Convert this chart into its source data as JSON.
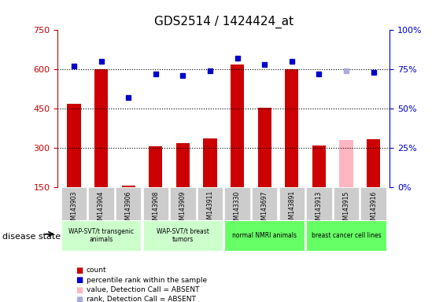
{
  "title": "GDS2514 / 1424424_at",
  "samples": [
    "GSM143903",
    "GSM143904",
    "GSM143906",
    "GSM143908",
    "GSM143909",
    "GSM143911",
    "GSM143330",
    "GSM143697",
    "GSM143891",
    "GSM143913",
    "GSM143915",
    "GSM143916"
  ],
  "bar_values": [
    470,
    600,
    155,
    305,
    318,
    338,
    618,
    453,
    600,
    310,
    330,
    335
  ],
  "bar_colors": [
    "#cc0000",
    "#cc0000",
    "#cc0000",
    "#cc0000",
    "#cc0000",
    "#cc0000",
    "#cc0000",
    "#cc0000",
    "#cc0000",
    "#cc0000",
    "#ffb6c1",
    "#cc0000"
  ],
  "rank_values": [
    77,
    80,
    57,
    72,
    71,
    74,
    82,
    78,
    80,
    72,
    74,
    73
  ],
  "rank_colors": [
    "#0000cc",
    "#0000cc",
    "#0000cc",
    "#0000cc",
    "#0000cc",
    "#0000cc",
    "#0000cc",
    "#0000cc",
    "#0000cc",
    "#0000cc",
    "#aaaadd",
    "#0000cc"
  ],
  "ylim_left": [
    150,
    750
  ],
  "ylim_right": [
    0,
    100
  ],
  "yticks_left": [
    150,
    300,
    450,
    600,
    750
  ],
  "yticks_right": [
    0,
    25,
    50,
    75,
    100
  ],
  "ytick_labels_right": [
    "0%",
    "25%",
    "50%",
    "75%",
    "100%"
  ],
  "hlines": [
    300,
    450,
    600
  ],
  "groups": [
    {
      "label": "WAP-SVT/t transgenic\nanimals",
      "start": 0,
      "end": 3,
      "color": "#ccffcc"
    },
    {
      "label": "WAP-SVT/t breast\ntumors",
      "start": 3,
      "end": 6,
      "color": "#ccffcc"
    },
    {
      "label": "normal NMRI animals",
      "start": 6,
      "end": 9,
      "color": "#66ff66"
    },
    {
      "label": "breast cancer cell lines",
      "start": 9,
      "end": 12,
      "color": "#66ff66"
    }
  ],
  "disease_state_label": "disease state",
  "legend_items": [
    {
      "label": "count",
      "color": "#cc0000"
    },
    {
      "label": "percentile rank within the sample",
      "color": "#0000cc"
    },
    {
      "label": "value, Detection Call = ABSENT",
      "color": "#ffb6c1"
    },
    {
      "label": "rank, Detection Call = ABSENT",
      "color": "#aaaadd"
    }
  ],
  "background_color": "#ffffff",
  "plot_bg_color": "#ffffff",
  "tick_color_left": "#cc0000",
  "tick_color_right": "#0000cc"
}
